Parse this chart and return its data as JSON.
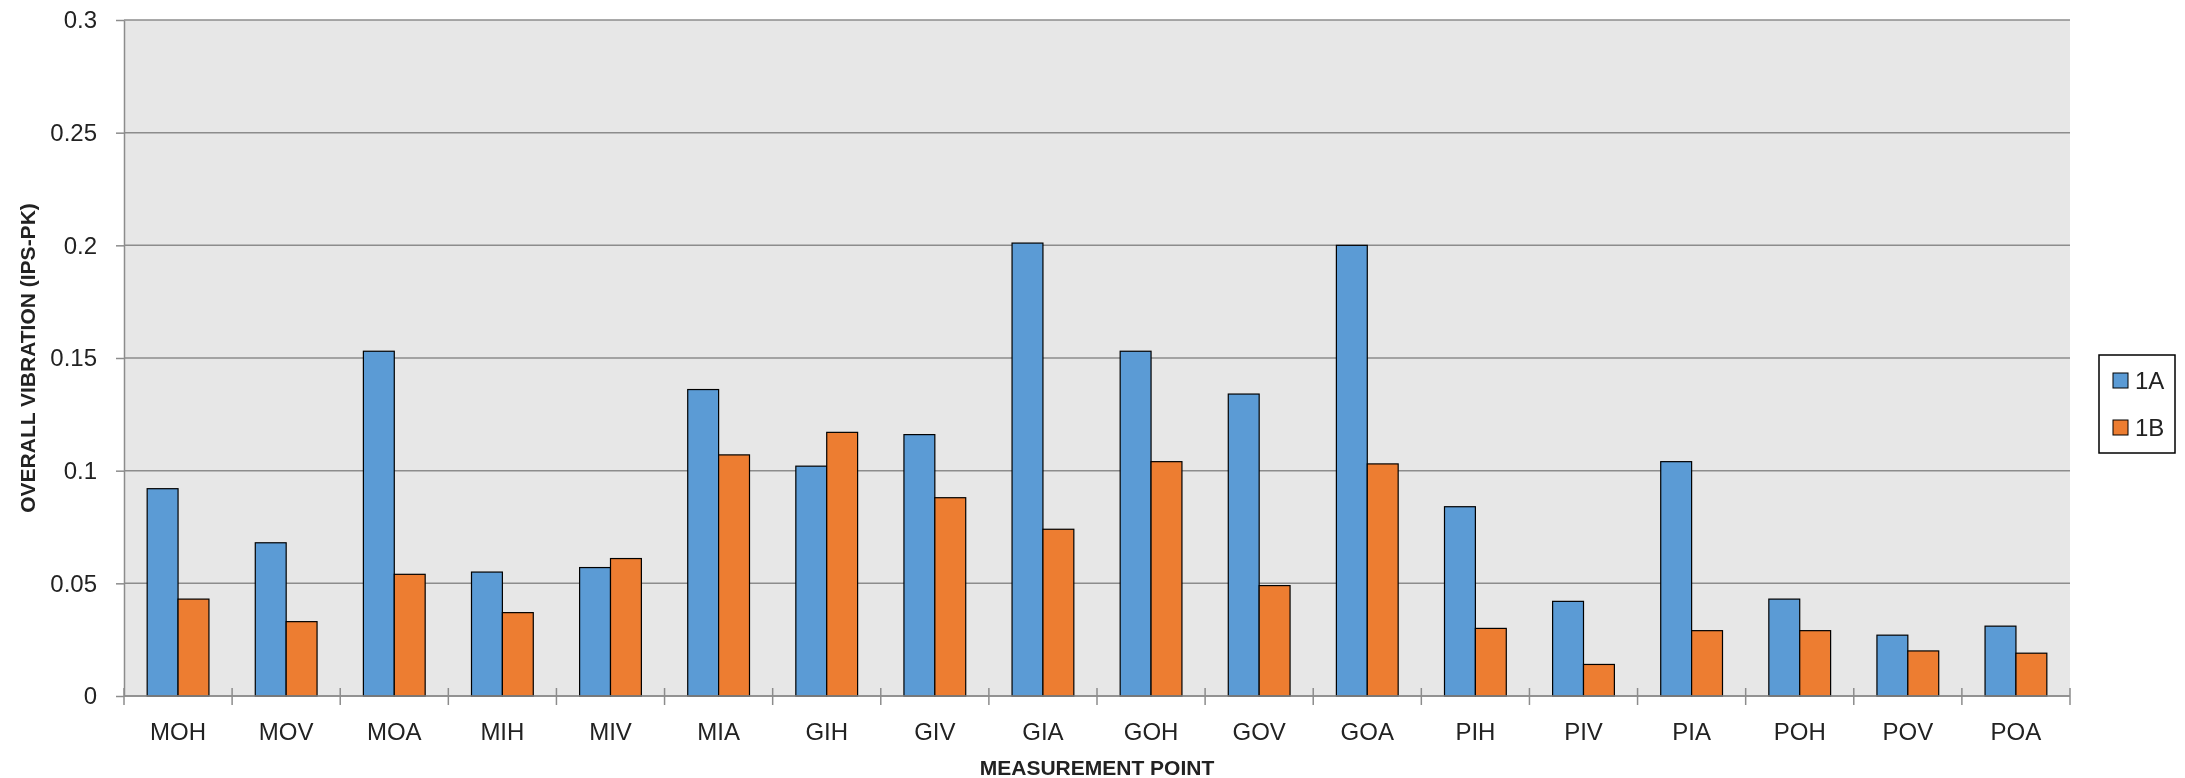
{
  "chart_data": {
    "type": "bar",
    "xlabel": "MEASUREMENT POINT",
    "ylabel": "OVERALL VIBRATION (IPS-PK)",
    "categories": [
      "MOH",
      "MOV",
      "MOA",
      "MIH",
      "MIV",
      "MIA",
      "GIH",
      "GIV",
      "GIA",
      "GOH",
      "GOV",
      "GOA",
      "PIH",
      "PIV",
      "PIA",
      "POH",
      "POV",
      "POA"
    ],
    "series": [
      {
        "name": "1A",
        "color": "#5b9bd5",
        "values": [
          0.092,
          0.068,
          0.153,
          0.055,
          0.057,
          0.136,
          0.102,
          0.116,
          0.201,
          0.153,
          0.134,
          0.2,
          0.084,
          0.042,
          0.104,
          0.043,
          0.027,
          0.031
        ]
      },
      {
        "name": "1B",
        "color": "#ed7d31",
        "values": [
          0.043,
          0.033,
          0.054,
          0.037,
          0.061,
          0.107,
          0.117,
          0.088,
          0.074,
          0.104,
          0.049,
          0.103,
          0.03,
          0.014,
          0.029,
          0.029,
          0.02,
          0.019
        ]
      }
    ],
    "ylim": [
      0,
      0.3
    ],
    "yticks": [
      0,
      0.05,
      0.1,
      0.15,
      0.2,
      0.25,
      0.3
    ],
    "grid": "y",
    "legend": "right"
  }
}
